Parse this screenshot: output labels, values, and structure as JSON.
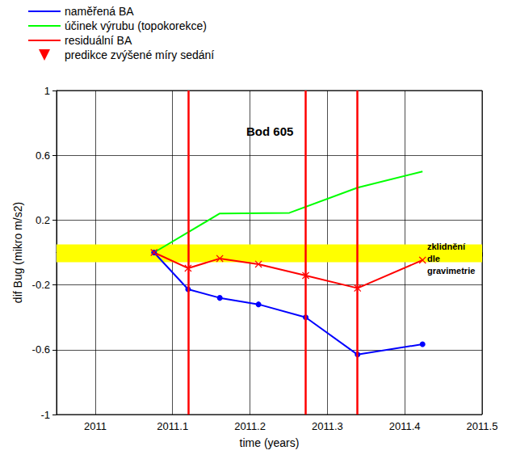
{
  "chart_data": {
    "type": "line",
    "title": "Bod 605",
    "xlabel": "time (years)",
    "ylabel": "dif Bug (mikro m/s2)",
    "xlim": [
      2010.95,
      2011.5
    ],
    "xticks": [
      2011,
      2011.1,
      2011.2,
      2011.3,
      2011.4,
      2011.5
    ],
    "ylim": [
      -1,
      1
    ],
    "yticks": [
      -1,
      -0.6,
      -0.2,
      0.2,
      0.6,
      1
    ],
    "grid": true,
    "legend": "upper left",
    "series": [
      {
        "name": "naměřená BA",
        "color": "#0000ff",
        "marker": "circle",
        "type": "line",
        "x": [
          2011.076,
          2011.12,
          2011.161,
          2011.211,
          2011.272,
          2011.339,
          2011.423
        ],
        "values": [
          0,
          -0.227,
          -0.28,
          -0.32,
          -0.4,
          -0.63,
          -0.566
        ]
      },
      {
        "name": "účinek výrubu (topokorekce)",
        "color": "#00ff00",
        "marker": "none",
        "type": "line",
        "x": [
          2011.076,
          2011.161,
          2011.251,
          2011.339,
          2011.423
        ],
        "values": [
          0,
          0.241,
          0.245,
          0.4,
          0.5
        ]
      },
      {
        "name": "residuální BA",
        "color": "#ff0000",
        "marker": "x",
        "type": "line",
        "x": [
          2011.076,
          2011.12,
          2011.161,
          2011.211,
          2011.272,
          2011.339,
          2011.423
        ],
        "values": [
          0,
          -0.097,
          -0.037,
          -0.072,
          -0.142,
          -0.22,
          -0.047
        ]
      },
      {
        "name": "predikce zvýšené míry sedání",
        "color": "#ff0000",
        "marker": "triangle",
        "type": "vline",
        "x": [
          2011.12,
          2011.272,
          2011.339
        ]
      }
    ],
    "band": {
      "text": "zklidnění dle gravimetrie",
      "color": "#ffff00",
      "range": [
        -0.06,
        0.05
      ]
    }
  }
}
